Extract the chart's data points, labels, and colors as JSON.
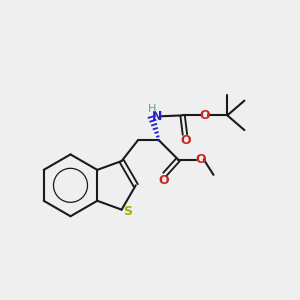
{
  "bg_color": "#efefef",
  "bond_color": "#1a1a1a",
  "N_color": "#2222cc",
  "O_color": "#cc2222",
  "S_color": "#aaaa00",
  "H_color": "#5f9ea0",
  "lw": 1.5,
  "figsize": [
    3.0,
    3.0
  ],
  "dpi": 100,
  "xlim": [
    0,
    10
  ],
  "ylim": [
    0,
    10
  ]
}
